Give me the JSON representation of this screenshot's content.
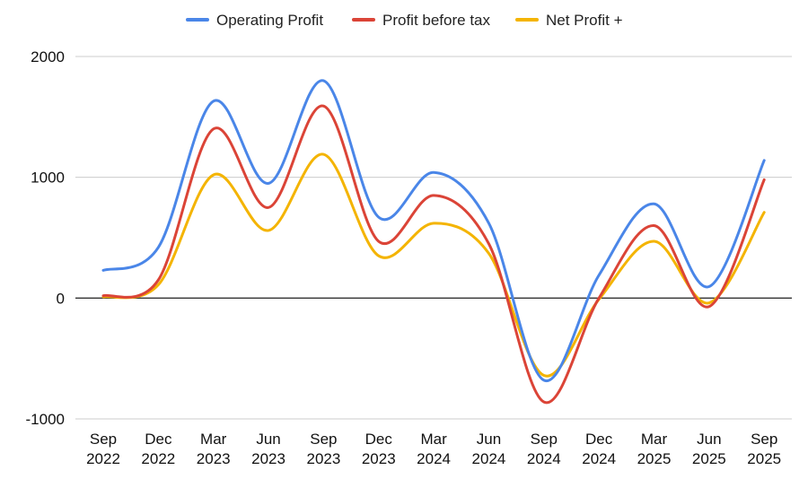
{
  "chart_data": {
    "type": "line",
    "title": "",
    "xlabel": "",
    "ylabel": "",
    "categories": [
      [
        "Sep",
        "2022"
      ],
      [
        "Dec",
        "2022"
      ],
      [
        "Mar",
        "2023"
      ],
      [
        "Jun",
        "2023"
      ],
      [
        "Sep",
        "2023"
      ],
      [
        "Dec",
        "2023"
      ],
      [
        "Mar",
        "2024"
      ],
      [
        "Jun",
        "2024"
      ],
      [
        "Sep",
        "2024"
      ],
      [
        "Dec",
        "2024"
      ],
      [
        "Mar",
        "2025"
      ],
      [
        "Jun",
        "2025"
      ],
      [
        "Sep",
        "2025"
      ]
    ],
    "ylim": [
      -1000,
      2000
    ],
    "yticks": [
      -1000,
      0,
      1000,
      2000
    ],
    "grid": true,
    "legend_position": "top",
    "series": [
      {
        "name": "Operating Profit",
        "color": "#4a86e8",
        "values": [
          230,
          420,
          1630,
          950,
          1800,
          670,
          1040,
          620,
          -680,
          190,
          780,
          95,
          1140
        ]
      },
      {
        "name": "Profit before tax",
        "color": "#db4437",
        "values": [
          20,
          150,
          1400,
          750,
          1590,
          470,
          850,
          450,
          -860,
          0,
          600,
          -70,
          980
        ]
      },
      {
        "name": "Net Profit +",
        "color": "#f4b400",
        "values": [
          10,
          110,
          1020,
          560,
          1190,
          350,
          620,
          370,
          -640,
          -10,
          470,
          -40,
          710
        ]
      }
    ]
  }
}
